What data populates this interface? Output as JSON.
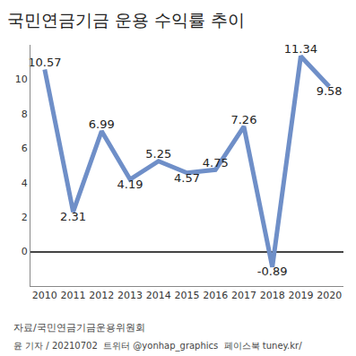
{
  "chart_data": {
    "type": "line",
    "title": "국민연금기금 운용 수익률 추이",
    "source": "자료/국민연금기금운용위원회",
    "footer": "윤 기자 / 20210702  트위터 @yonhap_graphics  페이스북 tuney.kr/",
    "categories": [
      "2010",
      "2011",
      "2012",
      "2013",
      "2014",
      "2015",
      "2016",
      "2017",
      "2018",
      "2019",
      "2020"
    ],
    "values": [
      10.57,
      2.31,
      6.99,
      4.19,
      5.25,
      4.57,
      4.75,
      7.26,
      -0.89,
      11.34,
      9.58
    ],
    "color": "#6f8fc8",
    "ylim": [
      -2,
      12
    ],
    "yticks": [
      0,
      2,
      4,
      6,
      8,
      10
    ],
    "grid": false,
    "data_labels": true
  }
}
